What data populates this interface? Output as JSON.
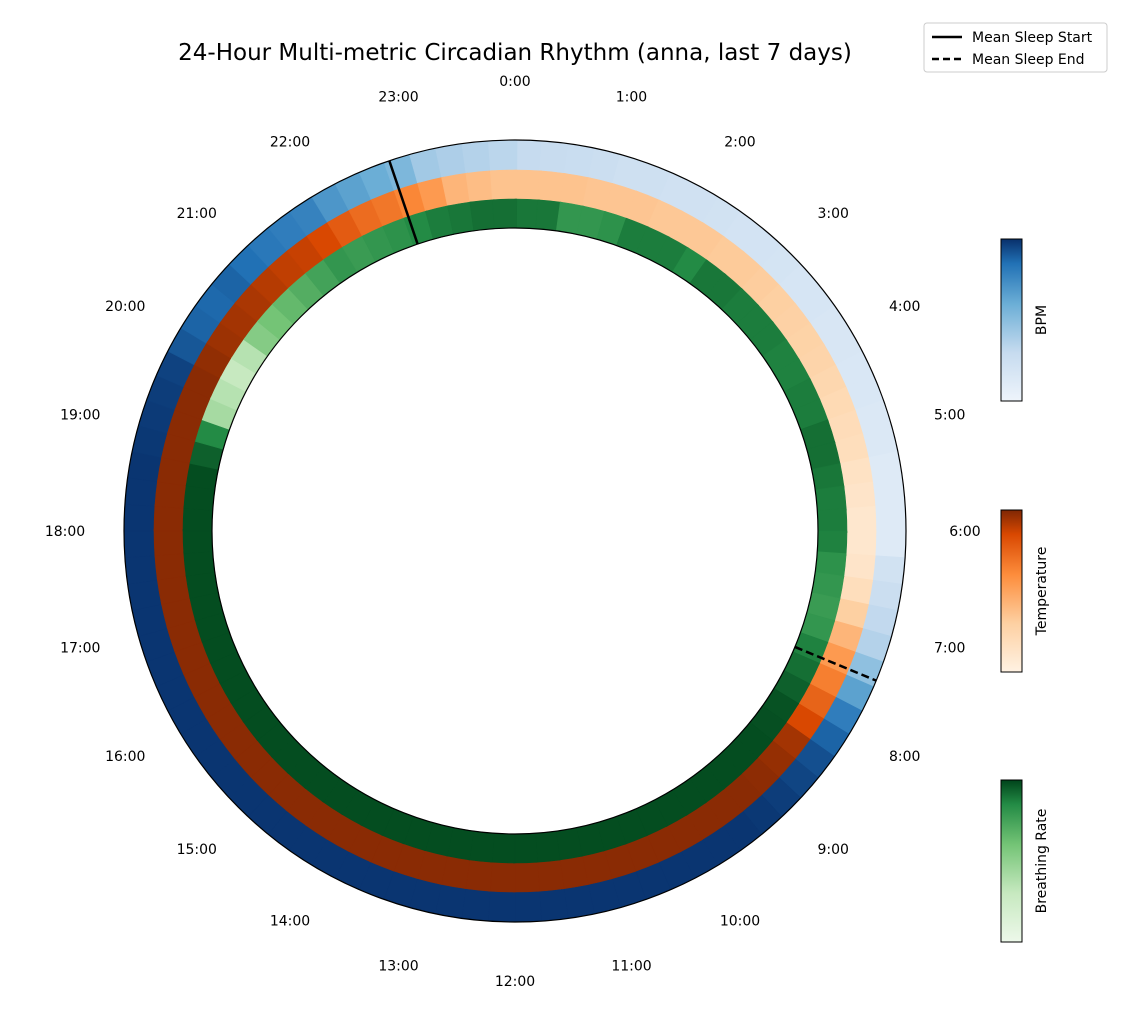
{
  "chart_data": {
    "type": "polar-heatmap",
    "title": "24-Hour Multi-metric Circadian Rhythm (anna, last 7 days)",
    "hours": [
      "0:00",
      "1:00",
      "2:00",
      "3:00",
      "4:00",
      "5:00",
      "6:00",
      "7:00",
      "8:00",
      "9:00",
      "10:00",
      "11:00",
      "12:00",
      "13:00",
      "14:00",
      "15:00",
      "16:00",
      "17:00",
      "18:00",
      "19:00",
      "20:00",
      "21:00",
      "22:00",
      "23:00"
    ],
    "direction": "clockwise",
    "zero_at": "top",
    "bins_per_hour": 4,
    "series": [
      {
        "name": "BPM",
        "ring": "outer",
        "colormap": "Blues",
        "values": [
          0.25,
          0.24,
          0.23,
          0.22,
          0.2,
          0.2,
          0.19,
          0.19,
          0.18,
          0.17,
          0.17,
          0.16,
          0.15,
          0.15,
          0.14,
          0.14,
          0.13,
          0.13,
          0.12,
          0.12,
          0.1,
          0.1,
          0.1,
          0.1,
          0.18,
          0.22,
          0.26,
          0.3,
          0.4,
          0.55,
          0.7,
          0.8,
          0.88,
          0.92,
          0.95,
          0.97,
          0.98,
          0.98,
          0.98,
          0.98,
          0.98,
          0.98,
          0.98,
          0.98,
          0.98,
          0.98,
          0.98,
          0.98,
          0.98,
          0.98,
          0.98,
          0.98,
          0.98,
          0.98,
          0.98,
          0.98,
          0.98,
          0.98,
          0.98,
          0.98,
          0.98,
          0.98,
          0.98,
          0.98,
          0.98,
          0.98,
          0.98,
          0.98,
          0.98,
          0.98,
          0.98,
          0.98,
          0.97,
          0.96,
          0.95,
          0.93,
          0.85,
          0.8,
          0.78,
          0.8,
          0.75,
          0.72,
          0.7,
          0.68,
          0.6,
          0.55,
          0.5,
          0.45,
          0.35,
          0.32,
          0.3,
          0.28
        ]
      },
      {
        "name": "Temperature",
        "ring": "middle",
        "colormap": "Oranges",
        "values": [
          0.3,
          0.3,
          0.3,
          0.29,
          0.29,
          0.29,
          0.28,
          0.28,
          0.28,
          0.27,
          0.27,
          0.26,
          0.25,
          0.24,
          0.23,
          0.22,
          0.2,
          0.18,
          0.16,
          0.15,
          0.12,
          0.1,
          0.08,
          0.08,
          0.1,
          0.15,
          0.25,
          0.35,
          0.45,
          0.55,
          0.65,
          0.75,
          0.9,
          0.94,
          0.96,
          0.97,
          0.97,
          0.97,
          0.97,
          0.97,
          0.97,
          0.97,
          0.97,
          0.97,
          0.97,
          0.97,
          0.97,
          0.97,
          0.97,
          0.97,
          0.97,
          0.97,
          0.97,
          0.97,
          0.97,
          0.97,
          0.97,
          0.97,
          0.97,
          0.97,
          0.97,
          0.97,
          0.97,
          0.97,
          0.97,
          0.97,
          0.97,
          0.97,
          0.97,
          0.97,
          0.97,
          0.97,
          0.97,
          0.97,
          0.97,
          0.97,
          0.95,
          0.92,
          0.9,
          0.88,
          0.85,
          0.82,
          0.8,
          0.75,
          0.68,
          0.62,
          0.58,
          0.52,
          0.45,
          0.35,
          0.32,
          0.3
        ]
      },
      {
        "name": "Breathing Rate",
        "ring": "inner",
        "colormap": "Greens",
        "values": [
          0.82,
          0.82,
          0.7,
          0.7,
          0.72,
          0.8,
          0.8,
          0.8,
          0.75,
          0.82,
          0.82,
          0.8,
          0.8,
          0.8,
          0.78,
          0.78,
          0.8,
          0.8,
          0.85,
          0.85,
          0.82,
          0.8,
          0.8,
          0.78,
          0.72,
          0.7,
          0.68,
          0.7,
          0.78,
          0.85,
          0.9,
          0.95,
          0.96,
          0.97,
          0.97,
          0.97,
          0.97,
          0.97,
          0.97,
          0.97,
          0.97,
          0.97,
          0.97,
          0.97,
          0.97,
          0.97,
          0.97,
          0.97,
          0.97,
          0.97,
          0.97,
          0.97,
          0.97,
          0.97,
          0.97,
          0.97,
          0.97,
          0.97,
          0.97,
          0.97,
          0.97,
          0.97,
          0.97,
          0.97,
          0.97,
          0.97,
          0.97,
          0.97,
          0.97,
          0.97,
          0.97,
          0.97,
          0.9,
          0.75,
          0.35,
          0.3,
          0.25,
          0.3,
          0.45,
          0.5,
          0.55,
          0.6,
          0.65,
          0.7,
          0.68,
          0.7,
          0.72,
          0.75,
          0.8,
          0.82,
          0.85,
          0.85
        ]
      }
    ],
    "lines": [
      {
        "name": "Mean Sleep Start",
        "hour": 22.75,
        "style": "solid"
      },
      {
        "name": "Mean Sleep End",
        "hour": 7.5,
        "style": "dashed"
      }
    ],
    "legend": {
      "position": "top-right",
      "entries": [
        {
          "label": "Mean Sleep Start",
          "style": "solid"
        },
        {
          "label": "Mean Sleep End",
          "style": "dashed"
        }
      ]
    },
    "colorbars": [
      {
        "label": "BPM",
        "colormap": "Blues"
      },
      {
        "label": "Temperature",
        "colormap": "Oranges"
      },
      {
        "label": "Breathing Rate",
        "colormap": "Greens"
      }
    ],
    "colormaps": {
      "Blues": [
        "#eef4fb",
        "#c6dbef",
        "#6baed6",
        "#2171b5",
        "#08306b"
      ],
      "Oranges": [
        "#fff2e3",
        "#fdd0a2",
        "#fd8d3c",
        "#d94801",
        "#7f2704"
      ],
      "Greens": [
        "#edf8ea",
        "#c7e9c0",
        "#74c476",
        "#238b45",
        "#00441b"
      ]
    }
  }
}
